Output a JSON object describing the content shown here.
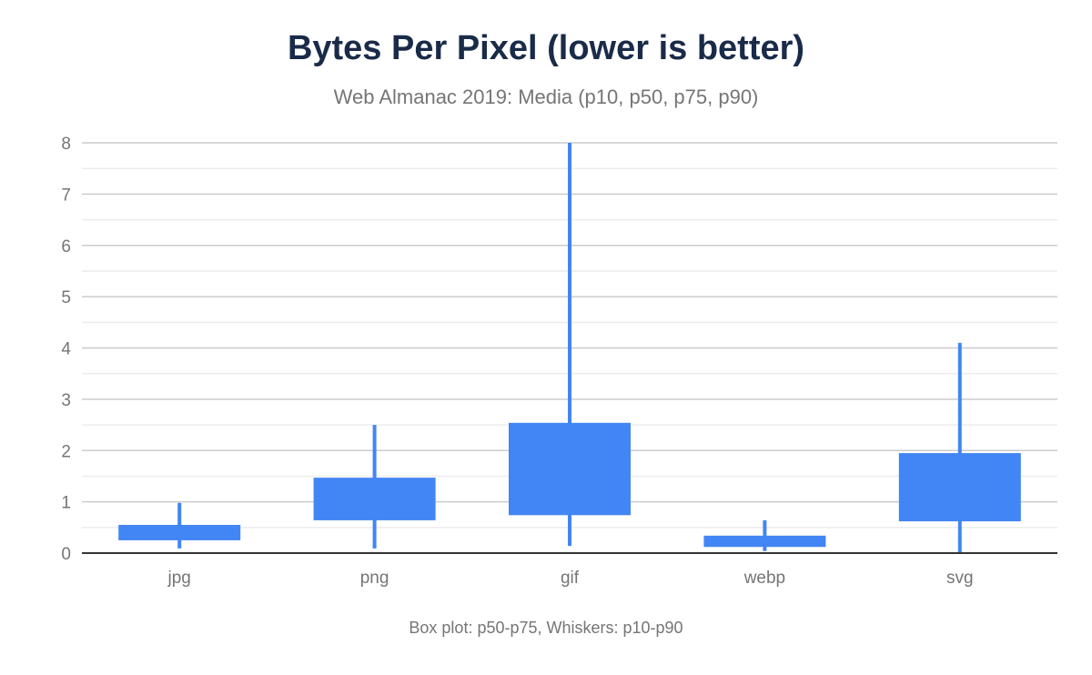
{
  "chart_data": {
    "type": "boxplot",
    "title": "Bytes Per Pixel (lower is better)",
    "subtitle": "Web Almanac 2019: Media (p10, p50, p75, p90)",
    "footnote": "Box plot: p50-p75, Whiskers: p10-p90",
    "categories": [
      "jpg",
      "png",
      "gif",
      "webp",
      "svg"
    ],
    "p10": [
      0.09,
      0.09,
      0.14,
      0.04,
      0.0
    ],
    "p50": [
      0.25,
      0.64,
      0.74,
      0.12,
      0.62
    ],
    "p75": [
      0.55,
      1.47,
      2.54,
      0.34,
      1.95
    ],
    "p90": [
      0.98,
      2.5,
      8.0,
      0.64,
      4.1
    ],
    "ylim": [
      0,
      8
    ],
    "yticks": [
      0,
      1,
      2,
      3,
      4,
      5,
      6,
      7,
      8
    ],
    "grid": true,
    "color": "#4285f4"
  }
}
